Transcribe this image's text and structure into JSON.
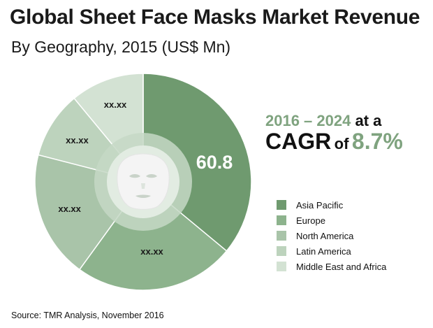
{
  "title": "Global Sheet Face Masks Market Revenue",
  "subtitle": "By Geography, 2015 (US$ Mn)",
  "cagr": {
    "period": "2016 – 2024",
    "at_a": "at a",
    "word": "CAGR",
    "of": "of",
    "value": "8.7%"
  },
  "source": "Source: TMR Analysis, November 2016",
  "chart_data": {
    "type": "pie",
    "style": "donut",
    "categories": [
      "Asia Pacific",
      "Europe",
      "North America",
      "Latin America",
      "Middle East and Africa"
    ],
    "data_labels": [
      "60.8",
      "xx.xx",
      "xx.xx",
      "xx.xx",
      "xx.xx"
    ],
    "shares_percent": [
      36,
      24,
      19,
      10,
      11
    ],
    "colors": [
      "#6f9a6f",
      "#8db38d",
      "#a9c4a9",
      "#bdd3bd",
      "#d3e2d3"
    ],
    "center_ring_color": "#c5d8c5",
    "center_icon": "face-mask-icon",
    "legend_position": "right"
  }
}
